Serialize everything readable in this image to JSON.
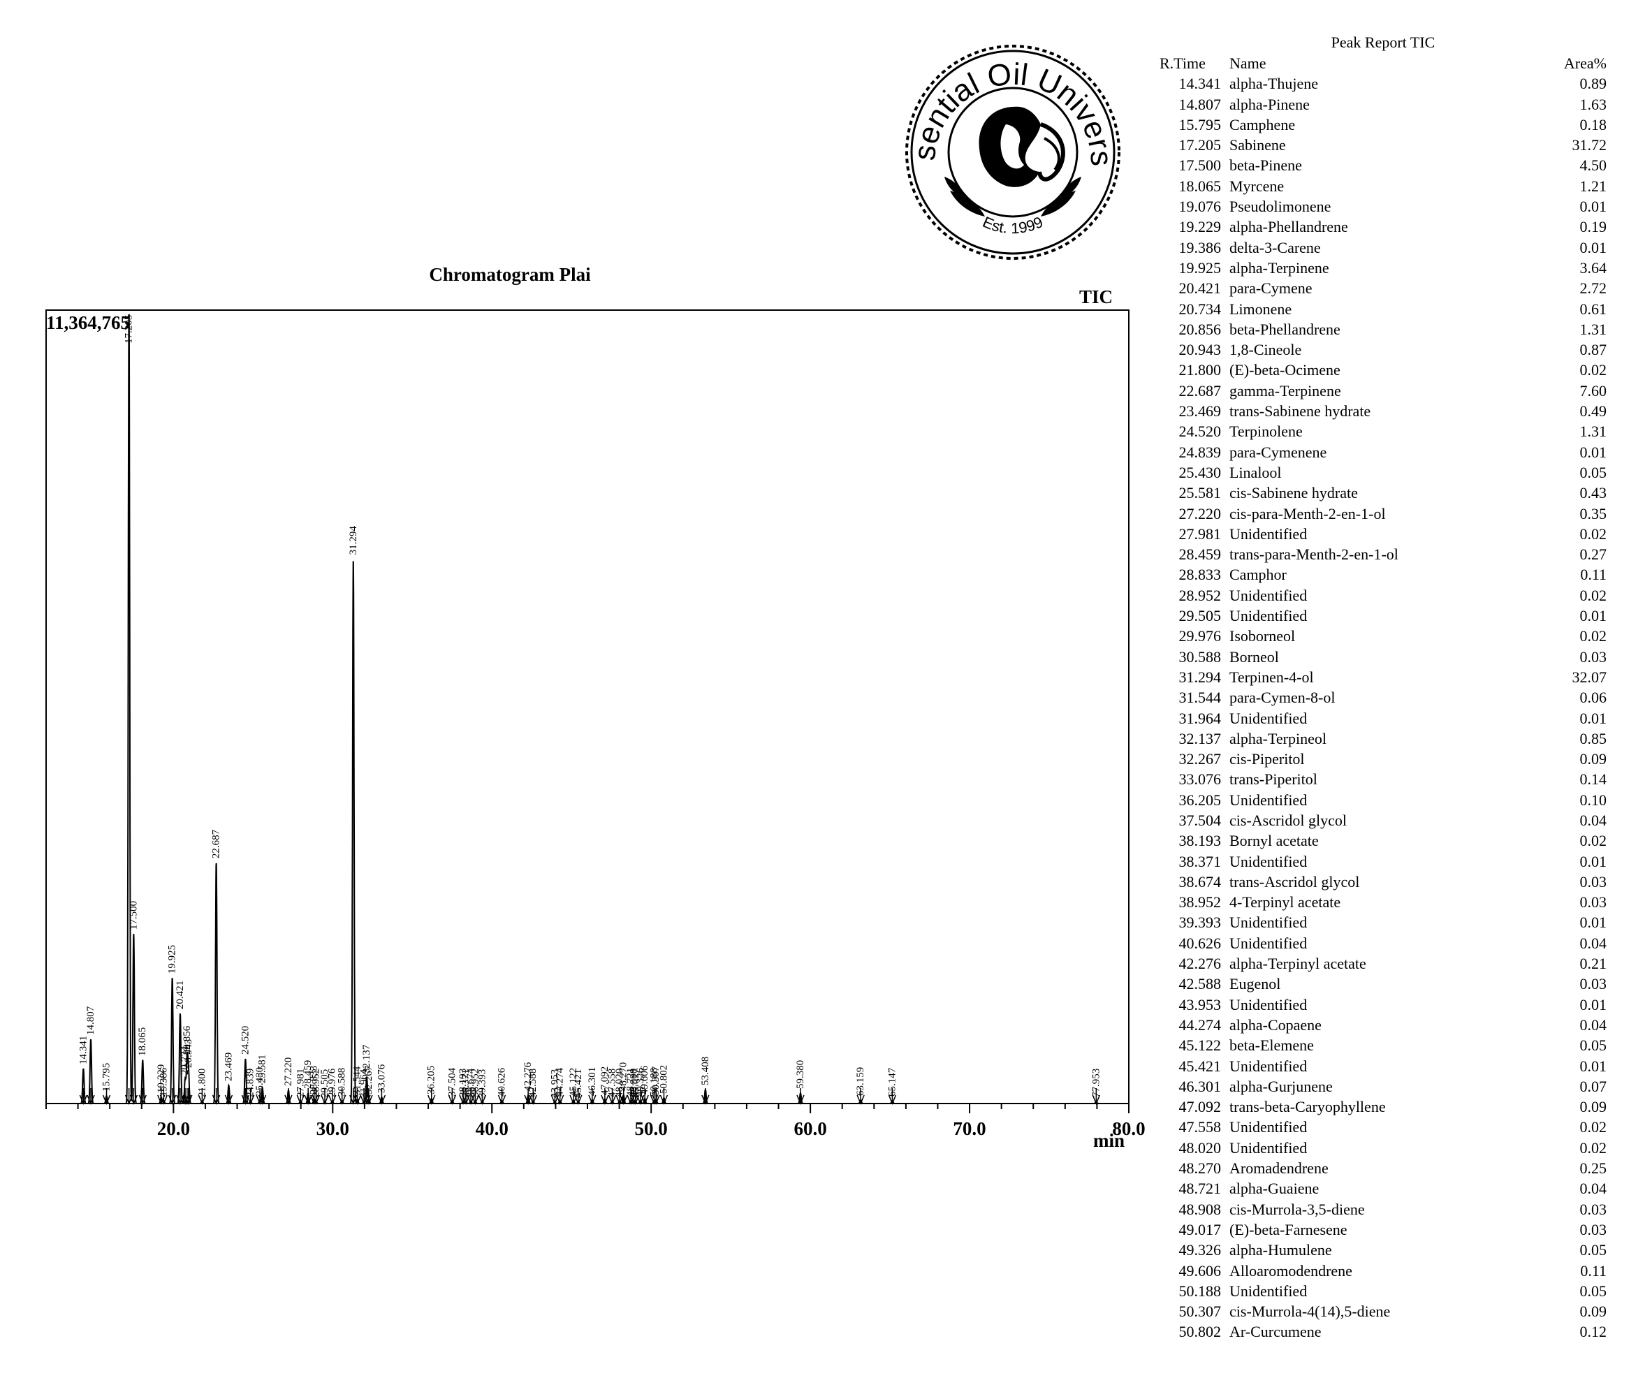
{
  "logo": {
    "text": "Essential Oil University",
    "est": "Est. 1999"
  },
  "chart_data": {
    "type": "line",
    "title": "Chromatogram Plai",
    "signal": "TIC",
    "xlabel": "min",
    "ylabel": "",
    "y_max_label": "11,364,765",
    "xlim": [
      12.0,
      80.0
    ],
    "ylim": [
      0,
      11364765
    ],
    "x_ticks": [
      "20.0",
      "30.0",
      "40.0",
      "50.0",
      "60.0",
      "70.0",
      "80.0"
    ],
    "peaks": [
      {
        "rt": 14.341,
        "label": "14.341",
        "y": 500000
      },
      {
        "rt": 14.807,
        "label": "14.807",
        "y": 920000
      },
      {
        "rt": 15.795,
        "label": "15.795",
        "y": 110000
      },
      {
        "rt": 17.205,
        "label": "17.205",
        "y": 11364765
      },
      {
        "rt": 17.5,
        "label": "17.500",
        "y": 2430000
      },
      {
        "rt": 18.065,
        "label": "18.065",
        "y": 620000
      },
      {
        "rt": 19.229,
        "label": "19.229",
        "y": 90000
      },
      {
        "rt": 19.386,
        "label": "19.386",
        "y": 40000
      },
      {
        "rt": 19.925,
        "label": "19.925",
        "y": 1800000
      },
      {
        "rt": 20.421,
        "label": "20.421",
        "y": 1290000
      },
      {
        "rt": 20.734,
        "label": "20.734",
        "y": 350000
      },
      {
        "rt": 20.856,
        "label": "20.856",
        "y": 640000
      },
      {
        "rt": 20.943,
        "label": "20.943",
        "y": 450000
      },
      {
        "rt": 21.8,
        "label": "21.800",
        "y": 30000
      },
      {
        "rt": 22.687,
        "label": "22.687",
        "y": 3450000
      },
      {
        "rt": 23.469,
        "label": "23.469",
        "y": 260000
      },
      {
        "rt": 24.52,
        "label": "24.520",
        "y": 640000
      },
      {
        "rt": 24.839,
        "label": "24.839",
        "y": 30000
      },
      {
        "rt": 25.43,
        "label": "25.430",
        "y": 50000
      },
      {
        "rt": 25.581,
        "label": "25.581",
        "y": 230000
      },
      {
        "rt": 27.22,
        "label": "27.220",
        "y": 190000
      },
      {
        "rt": 27.981,
        "label": "27.981",
        "y": 30000
      },
      {
        "rt": 28.459,
        "label": "28.459",
        "y": 150000
      },
      {
        "rt": 28.833,
        "label": "28.833",
        "y": 70000
      },
      {
        "rt": 28.952,
        "label": "28.952",
        "y": 30000
      },
      {
        "rt": 29.505,
        "label": "29.505",
        "y": 20000
      },
      {
        "rt": 29.976,
        "label": "29.976",
        "y": 30000
      },
      {
        "rt": 30.588,
        "label": "30.588",
        "y": 40000
      },
      {
        "rt": 31.294,
        "label": "31.294",
        "y": 7800000
      },
      {
        "rt": 31.544,
        "label": "31.544",
        "y": 60000
      },
      {
        "rt": 31.964,
        "label": "31.964",
        "y": 20000
      },
      {
        "rt": 32.137,
        "label": "32.137",
        "y": 370000
      },
      {
        "rt": 32.267,
        "label": "32.267",
        "y": 70000
      },
      {
        "rt": 33.076,
        "label": "33.076",
        "y": 90000
      },
      {
        "rt": 36.205,
        "label": "36.205",
        "y": 70000
      },
      {
        "rt": 37.504,
        "label": "37.504",
        "y": 40000
      },
      {
        "rt": 38.193,
        "label": "38.193",
        "y": 30000
      },
      {
        "rt": 38.371,
        "label": "38.371",
        "y": 20000
      },
      {
        "rt": 38.674,
        "label": "38.674",
        "y": 30000
      },
      {
        "rt": 38.952,
        "label": "38.952",
        "y": 30000
      },
      {
        "rt": 39.393,
        "label": "39.393",
        "y": 20000
      },
      {
        "rt": 40.626,
        "label": "40.626",
        "y": 40000
      },
      {
        "rt": 42.276,
        "label": "42.276",
        "y": 120000
      },
      {
        "rt": 42.588,
        "label": "42.588",
        "y": 30000
      },
      {
        "rt": 43.953,
        "label": "43.953",
        "y": 20000
      },
      {
        "rt": 44.274,
        "label": "44.274",
        "y": 40000
      },
      {
        "rt": 45.122,
        "label": "45.122",
        "y": 40000
      },
      {
        "rt": 45.421,
        "label": "45.421",
        "y": 20000
      },
      {
        "rt": 46.301,
        "label": "46.301",
        "y": 50000
      },
      {
        "rt": 47.092,
        "label": "47.092",
        "y": 60000
      },
      {
        "rt": 47.558,
        "label": "47.558",
        "y": 30000
      },
      {
        "rt": 48.02,
        "label": "48.020",
        "y": 30000
      },
      {
        "rt": 48.27,
        "label": "48.270",
        "y": 120000
      },
      {
        "rt": 48.721,
        "label": "48.721",
        "y": 40000
      },
      {
        "rt": 48.908,
        "label": "48.908",
        "y": 30000
      },
      {
        "rt": 49.017,
        "label": "49.017",
        "y": 30000
      },
      {
        "rt": 49.326,
        "label": "49.326",
        "y": 40000
      },
      {
        "rt": 49.606,
        "label": "49.606",
        "y": 70000
      },
      {
        "rt": 50.188,
        "label": "50.188",
        "y": 40000
      },
      {
        "rt": 50.307,
        "label": "50.307",
        "y": 60000
      },
      {
        "rt": 50.802,
        "label": "50.802",
        "y": 80000
      },
      {
        "rt": 53.408,
        "label": "53.408",
        "y": 200000
      },
      {
        "rt": 59.38,
        "label": "59.380",
        "y": 150000
      },
      {
        "rt": 63.159,
        "label": "63.159",
        "y": 50000
      },
      {
        "rt": 65.147,
        "label": "65.147",
        "y": 40000
      },
      {
        "rt": 77.953,
        "label": "77.953",
        "y": 30000
      }
    ]
  },
  "report": {
    "title": "Peak Report TIC",
    "headers": {
      "rt": "R.Time",
      "name": "Name",
      "area": "Area%"
    },
    "rows": [
      {
        "rt": "14.341",
        "name": "alpha-Thujene",
        "area": "0.89"
      },
      {
        "rt": "14.807",
        "name": "alpha-Pinene",
        "area": "1.63"
      },
      {
        "rt": "15.795",
        "name": "Camphene",
        "area": "0.18"
      },
      {
        "rt": "17.205",
        "name": "Sabinene",
        "area": "31.72"
      },
      {
        "rt": "17.500",
        "name": "beta-Pinene",
        "area": "4.50"
      },
      {
        "rt": "18.065",
        "name": "Myrcene",
        "area": "1.21"
      },
      {
        "rt": "19.076",
        "name": "Pseudolimonene",
        "area": "0.01"
      },
      {
        "rt": "19.229",
        "name": "alpha-Phellandrene",
        "area": "0.19"
      },
      {
        "rt": "19.386",
        "name": "delta-3-Carene",
        "area": "0.01"
      },
      {
        "rt": "19.925",
        "name": "alpha-Terpinene",
        "area": "3.64"
      },
      {
        "rt": "20.421",
        "name": "para-Cymene",
        "area": "2.72"
      },
      {
        "rt": "20.734",
        "name": "Limonene",
        "area": "0.61"
      },
      {
        "rt": "20.856",
        "name": "beta-Phellandrene",
        "area": "1.31"
      },
      {
        "rt": "20.943",
        "name": "1,8-Cineole",
        "area": "0.87"
      },
      {
        "rt": "21.800",
        "name": "(E)-beta-Ocimene",
        "area": "0.02"
      },
      {
        "rt": "22.687",
        "name": "gamma-Terpinene",
        "area": "7.60"
      },
      {
        "rt": "23.469",
        "name": "trans-Sabinene hydrate",
        "area": "0.49"
      },
      {
        "rt": "24.520",
        "name": "Terpinolene",
        "area": "1.31"
      },
      {
        "rt": "24.839",
        "name": "para-Cymenene",
        "area": "0.01"
      },
      {
        "rt": "25.430",
        "name": "Linalool",
        "area": "0.05"
      },
      {
        "rt": "25.581",
        "name": "cis-Sabinene hydrate",
        "area": "0.43"
      },
      {
        "rt": "27.220",
        "name": "cis-para-Menth-2-en-1-ol",
        "area": "0.35"
      },
      {
        "rt": "27.981",
        "name": "Unidentified",
        "area": "0.02"
      },
      {
        "rt": "28.459",
        "name": "trans-para-Menth-2-en-1-ol",
        "area": "0.27"
      },
      {
        "rt": "28.833",
        "name": "Camphor",
        "area": "0.11"
      },
      {
        "rt": "28.952",
        "name": "Unidentified",
        "area": "0.02"
      },
      {
        "rt": "29.505",
        "name": "Unidentified",
        "area": "0.01"
      },
      {
        "rt": "29.976",
        "name": "Isoborneol",
        "area": "0.02"
      },
      {
        "rt": "30.588",
        "name": "Borneol",
        "area": "0.03"
      },
      {
        "rt": "31.294",
        "name": "Terpinen-4-ol",
        "area": "32.07"
      },
      {
        "rt": "31.544",
        "name": "para-Cymen-8-ol",
        "area": "0.06"
      },
      {
        "rt": "31.964",
        "name": "Unidentified",
        "area": "0.01"
      },
      {
        "rt": "32.137",
        "name": "alpha-Terpineol",
        "area": "0.85"
      },
      {
        "rt": "32.267",
        "name": "cis-Piperitol",
        "area": "0.09"
      },
      {
        "rt": "33.076",
        "name": "trans-Piperitol",
        "area": "0.14"
      },
      {
        "rt": "36.205",
        "name": "Unidentified",
        "area": "0.10"
      },
      {
        "rt": "37.504",
        "name": "cis-Ascridol glycol",
        "area": "0.04"
      },
      {
        "rt": "38.193",
        "name": "Bornyl acetate",
        "area": "0.02"
      },
      {
        "rt": "38.371",
        "name": "Unidentified",
        "area": "0.01"
      },
      {
        "rt": "38.674",
        "name": "trans-Ascridol glycol",
        "area": "0.03"
      },
      {
        "rt": "38.952",
        "name": "4-Terpinyl acetate",
        "area": "0.03"
      },
      {
        "rt": "39.393",
        "name": "Unidentified",
        "area": "0.01"
      },
      {
        "rt": "40.626",
        "name": "Unidentified",
        "area": "0.04"
      },
      {
        "rt": "42.276",
        "name": "alpha-Terpinyl acetate",
        "area": "0.21"
      },
      {
        "rt": "42.588",
        "name": "Eugenol",
        "area": "0.03"
      },
      {
        "rt": "43.953",
        "name": "Unidentified",
        "area": "0.01"
      },
      {
        "rt": "44.274",
        "name": "alpha-Copaene",
        "area": "0.04"
      },
      {
        "rt": "45.122",
        "name": "beta-Elemene",
        "area": "0.05"
      },
      {
        "rt": "45.421",
        "name": "Unidentified",
        "area": "0.01"
      },
      {
        "rt": "46.301",
        "name": "alpha-Gurjunene",
        "area": "0.07"
      },
      {
        "rt": "47.092",
        "name": "trans-beta-Caryophyllene",
        "area": "0.09"
      },
      {
        "rt": "47.558",
        "name": "Unidentified",
        "area": "0.02"
      },
      {
        "rt": "48.020",
        "name": "Unidentified",
        "area": "0.02"
      },
      {
        "rt": "48.270",
        "name": "Aromadendrene",
        "area": "0.25"
      },
      {
        "rt": "48.721",
        "name": "alpha-Guaiene",
        "area": "0.04"
      },
      {
        "rt": "48.908",
        "name": "cis-Murrola-3,5-diene",
        "area": "0.03"
      },
      {
        "rt": "49.017",
        "name": "(E)-beta-Farnesene",
        "area": "0.03"
      },
      {
        "rt": "49.326",
        "name": "alpha-Humulene",
        "area": "0.05"
      },
      {
        "rt": "49.606",
        "name": "Alloaromodendrene",
        "area": "0.11"
      },
      {
        "rt": "50.188",
        "name": "Unidentified",
        "area": "0.05"
      },
      {
        "rt": "50.307",
        "name": "cis-Murrola-4(14),5-diene",
        "area": "0.09"
      },
      {
        "rt": "50.802",
        "name": "Ar-Curcumene",
        "area": "0.12"
      }
    ]
  }
}
